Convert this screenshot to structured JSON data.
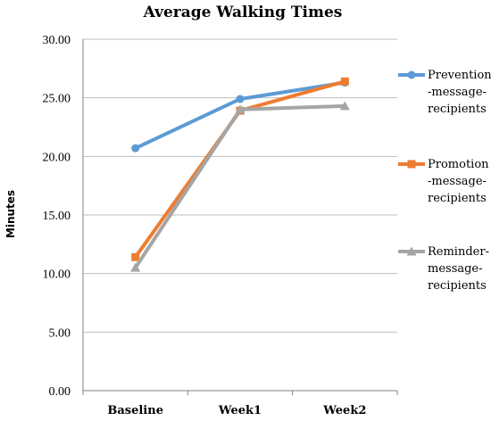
{
  "chart_data": {
    "type": "line",
    "title": "Average Walking Times",
    "xlabel": "",
    "ylabel": "Minutes",
    "categories": [
      "Baseline",
      "Week1",
      "Week2"
    ],
    "ylim": [
      0,
      30
    ],
    "yticks": [
      "0.00",
      "5.00",
      "10.00",
      "15.00",
      "20.00",
      "25.00",
      "30.00"
    ],
    "grid": true,
    "legend_position": "right",
    "series": [
      {
        "name": "Prevention-message-recipients",
        "legend_lines": [
          "Prevention",
          "-message-",
          "recipients"
        ],
        "values": [
          20.7,
          24.9,
          26.3
        ],
        "color": "#5b9bd5",
        "marker": "circle"
      },
      {
        "name": "Promotion-message-recipients",
        "legend_lines": [
          "Promotion",
          "-message-",
          "recipients"
        ],
        "values": [
          11.4,
          23.9,
          26.4
        ],
        "color": "#ed7d31",
        "marker": "square"
      },
      {
        "name": "Reminder-message-recipients",
        "legend_lines": [
          "Reminder-",
          "message-",
          "recipients"
        ],
        "values": [
          10.5,
          24.0,
          24.3
        ],
        "color": "#a5a5a5",
        "marker": "triangle"
      }
    ]
  }
}
